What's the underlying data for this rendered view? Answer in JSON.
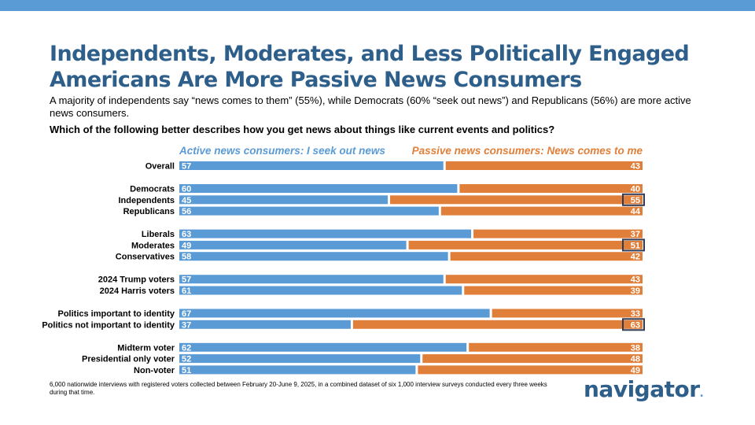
{
  "header": {
    "title_line1": "Independents, Moderates, and Less Politically Engaged",
    "title_line2": "Americans Are More Passive News Consumers",
    "subtitle": "A majority of independents say “news comes to them” (55%), while Democrats (60% “seek out news”) and Republicans (56%) are more active news consumers.",
    "question": "Which of the following better describes how you get news about things like current events and politics?"
  },
  "colors": {
    "active": "#5b9bd5",
    "passive": "#e07f39",
    "highlight_border": "#2f3a56",
    "title": "#2e5f8a"
  },
  "chart_data": {
    "type": "bar",
    "orientation": "horizontal",
    "stacked": true,
    "legend_position": "top",
    "categories": [
      "Overall",
      "Democrats",
      "Independents",
      "Republicans",
      "Liberals",
      "Moderates",
      "Conservatives",
      "2024 Trump voters",
      "2024 Harris voters",
      "Politics important to identity",
      "Politics not important to identity",
      "Midterm voter",
      "Presidential only voter",
      "Non-voter"
    ],
    "groups": [
      1,
      2,
      2,
      2,
      3,
      3,
      3,
      4,
      4,
      5,
      5,
      6,
      6,
      6
    ],
    "series": [
      {
        "name": "Active news consumers: I seek out news",
        "values": [
          57,
          60,
          45,
          56,
          63,
          49,
          58,
          57,
          61,
          67,
          37,
          62,
          52,
          51
        ]
      },
      {
        "name": "Passive news consumers: News comes to me",
        "values": [
          43,
          40,
          55,
          44,
          37,
          51,
          42,
          43,
          39,
          33,
          63,
          38,
          48,
          49
        ]
      }
    ],
    "highlighted": [
      {
        "category": "Independents",
        "series": "Passive news consumers: News comes to me"
      },
      {
        "category": "Moderates",
        "series": "Passive news consumers: News comes to me"
      },
      {
        "category": "Politics not important to identity",
        "series": "Passive news consumers: News comes to me"
      }
    ],
    "xlim": [
      0,
      100
    ]
  },
  "footnote": "6,000 nationwide interviews with registered voters collected between February 20-June 9, 2025, in a combined dataset of six 1,000 interview surveys conducted every three weeks during that time.",
  "logo": {
    "text": "navigator",
    "dot": "."
  }
}
